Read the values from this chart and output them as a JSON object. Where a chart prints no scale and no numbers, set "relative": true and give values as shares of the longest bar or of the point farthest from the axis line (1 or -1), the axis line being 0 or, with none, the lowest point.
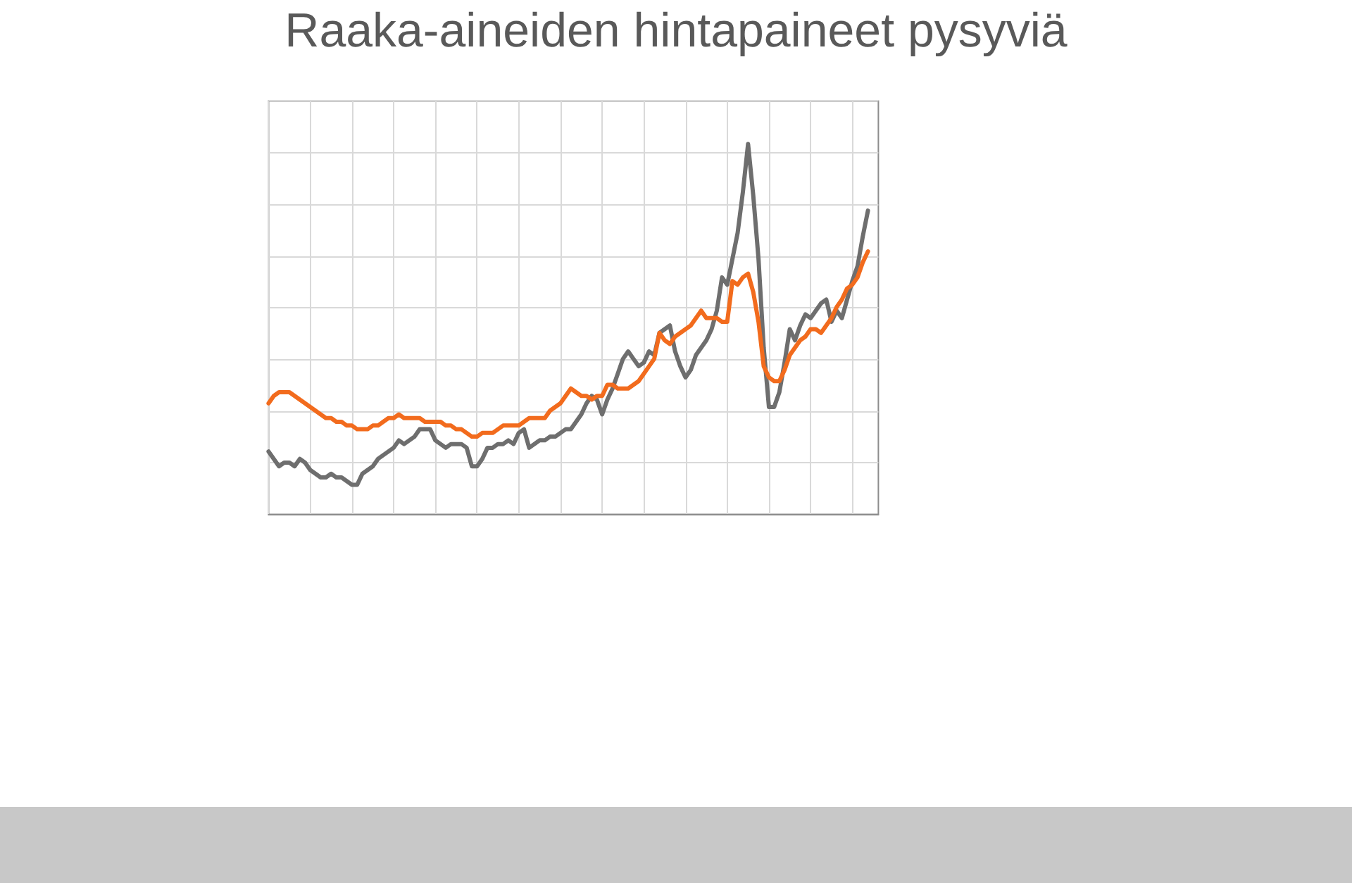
{
  "chart_data": {
    "type": "line",
    "title": "Raaka-aineiden hintapaineet pysyviä",
    "relative": true,
    "grid": true,
    "marker": "none",
    "line_style": "solid",
    "categories": [
      null,
      null,
      null,
      null,
      null,
      null,
      null,
      null,
      null,
      null,
      null,
      null,
      null,
      null,
      null,
      null,
      null,
      null,
      null,
      null,
      null,
      null,
      null,
      null,
      null,
      null,
      null,
      null,
      null,
      null,
      null,
      null,
      null,
      null,
      null,
      null,
      null,
      null,
      null,
      null,
      null,
      null,
      null,
      null,
      null,
      null,
      null,
      null,
      null,
      null,
      null,
      null,
      null,
      null,
      null,
      null,
      null,
      null,
      null,
      null,
      null,
      null,
      null,
      null,
      null,
      null,
      null,
      null,
      null,
      null,
      null,
      null,
      null,
      null,
      null,
      null,
      null,
      null,
      null,
      null,
      null,
      null,
      null,
      null,
      null,
      null,
      null,
      null,
      null,
      null,
      null,
      null,
      null,
      null,
      null,
      null,
      null,
      null,
      null,
      null,
      null,
      null,
      null,
      null,
      null,
      null,
      null,
      null,
      null,
      null,
      null,
      null,
      null,
      null,
      null,
      null,
      null,
      null
    ],
    "series": [
      {
        "color": "#6e6e6e",
        "values": [
          0.17,
          0.15,
          0.13,
          0.14,
          0.14,
          0.13,
          0.15,
          0.14,
          0.12,
          0.11,
          0.1,
          0.1,
          0.11,
          0.1,
          0.1,
          0.09,
          0.08,
          0.08,
          0.11,
          0.12,
          0.13,
          0.15,
          0.16,
          0.17,
          0.18,
          0.2,
          0.19,
          0.2,
          0.21,
          0.23,
          0.23,
          0.23,
          0.2,
          0.19,
          0.18,
          0.19,
          0.19,
          0.19,
          0.18,
          0.13,
          0.13,
          0.15,
          0.18,
          0.18,
          0.19,
          0.19,
          0.2,
          0.19,
          0.22,
          0.23,
          0.18,
          0.19,
          0.2,
          0.2,
          0.21,
          0.21,
          0.22,
          0.23,
          0.23,
          0.25,
          0.27,
          0.3,
          0.32,
          0.31,
          0.27,
          0.31,
          0.34,
          0.38,
          0.42,
          0.44,
          0.42,
          0.4,
          0.41,
          0.44,
          0.43,
          0.49,
          0.5,
          0.51,
          0.44,
          0.4,
          0.37,
          0.39,
          0.43,
          0.45,
          0.47,
          0.5,
          0.55,
          0.64,
          0.62,
          0.69,
          0.76,
          0.87,
          1,
          0.86,
          0.69,
          0.45,
          0.29,
          0.29,
          0.33,
          0.41,
          0.5,
          0.47,
          0.51,
          0.54,
          0.53,
          0.55,
          0.57,
          0.58,
          0.52,
          0.55,
          0.53,
          0.58,
          0.63,
          0.67,
          0.75,
          0.82,
          null,
          null
        ]
      },
      {
        "color": "#f26b1d",
        "values": [
          0.3,
          0.32,
          0.33,
          0.33,
          0.33,
          0.32,
          0.31,
          0.3,
          0.29,
          0.28,
          0.27,
          0.26,
          0.26,
          0.25,
          0.25,
          0.24,
          0.24,
          0.23,
          0.23,
          0.23,
          0.24,
          0.24,
          0.25,
          0.26,
          0.26,
          0.27,
          0.26,
          0.26,
          0.26,
          0.26,
          0.25,
          0.25,
          0.25,
          0.25,
          0.24,
          0.24,
          0.23,
          0.23,
          0.22,
          0.21,
          0.21,
          0.22,
          0.22,
          0.22,
          0.23,
          0.24,
          0.24,
          0.24,
          0.24,
          0.25,
          0.26,
          0.26,
          0.26,
          0.26,
          0.28,
          0.29,
          0.3,
          0.32,
          0.34,
          0.33,
          0.32,
          0.32,
          0.31,
          0.32,
          0.32,
          0.35,
          0.35,
          0.34,
          0.34,
          0.34,
          0.35,
          0.36,
          0.38,
          0.4,
          0.42,
          0.49,
          0.47,
          0.46,
          0.48,
          0.49,
          0.5,
          0.51,
          0.53,
          0.55,
          0.53,
          0.53,
          0.53,
          0.52,
          0.52,
          0.63,
          0.62,
          0.64,
          0.65,
          0.6,
          0.52,
          0.4,
          0.37,
          0.36,
          0.36,
          0.39,
          0.43,
          0.45,
          0.47,
          0.48,
          0.5,
          0.5,
          0.49,
          0.51,
          0.53,
          0.56,
          0.58,
          0.61,
          0.62,
          0.64,
          0.68,
          0.71,
          null,
          null
        ]
      }
    ]
  }
}
